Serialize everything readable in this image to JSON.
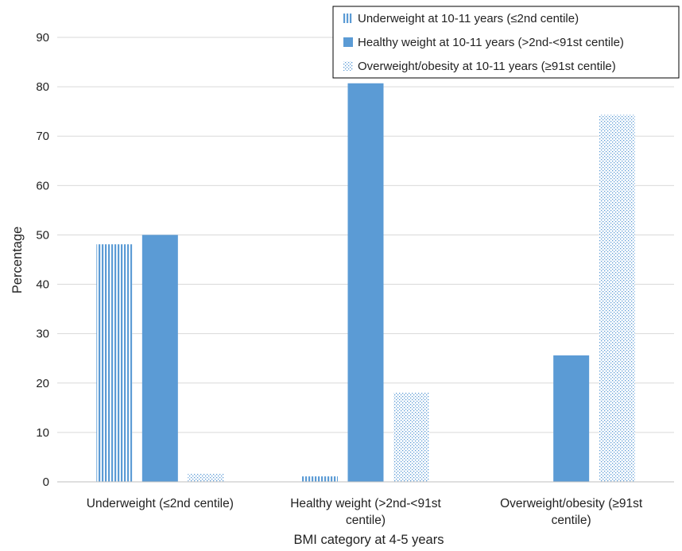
{
  "chart_data": {
    "type": "bar",
    "xlabel": "BMI category at 4-5 years",
    "ylabel": "Percentage",
    "ylim": [
      0,
      90
    ],
    "yticks": [
      0,
      10,
      20,
      30,
      40,
      50,
      60,
      70,
      80,
      90
    ],
    "grid": true,
    "legend_position": "top-right",
    "categories": [
      [
        "Underweight (≤2nd centile)"
      ],
      [
        "Healthy weight (>2nd-<91st",
        "centile)"
      ],
      [
        "Overweight/obesity (≥91st",
        "centile)"
      ]
    ],
    "series": [
      {
        "name": "Underweight at 10-11 years (≤2nd centile)",
        "values": [
          48.1,
          1.1,
          0
        ],
        "pattern": "vertical-lines",
        "color": "#5b9bd5"
      },
      {
        "name": "Healthy weight at 10-11 years (>2nd-<91st centile)",
        "values": [
          50.0,
          80.7,
          25.6
        ],
        "pattern": "solid",
        "color": "#5b9bd5"
      },
      {
        "name": "Overweight/obesity at 10-11 years (≥91st centile)",
        "values": [
          1.7,
          18.1,
          74.3
        ],
        "pattern": "dots",
        "color": "#5b9bd5"
      }
    ]
  }
}
